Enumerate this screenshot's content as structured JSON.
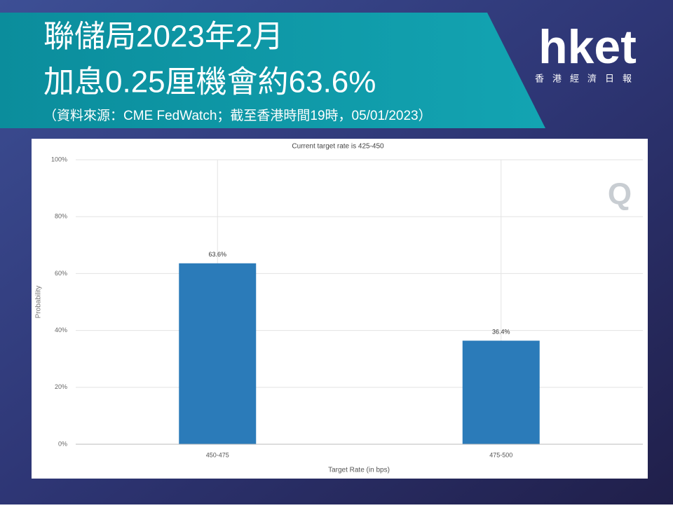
{
  "header": {
    "title_lines": [
      "聯儲局2023年2月",
      "加息0.25厘機會約63.6%"
    ],
    "source": "（資料來源：CME FedWatch；截至香港時間19時，05/01/2023）"
  },
  "logo": {
    "brand": "hket",
    "tagline": "香港經濟日報"
  },
  "chart_data": {
    "type": "bar",
    "title": "Current target rate is 425-450",
    "categories": [
      "450-475",
      "475-500"
    ],
    "values": [
      63.6,
      36.4
    ],
    "value_labels": [
      "63.6%",
      "36.4%"
    ],
    "color": "#2b7bb9",
    "x_label": "Target Rate (in bps)",
    "y_label": "Probability",
    "watermark": "Q",
    "ylim": [
      0,
      100
    ],
    "yticks": [
      {
        "value": 0,
        "label": "0%"
      },
      {
        "value": 20,
        "label": "20%"
      },
      {
        "value": 40,
        "label": "40%"
      },
      {
        "value": 60,
        "label": "60%"
      },
      {
        "value": 80,
        "label": "80%"
      },
      {
        "value": 100,
        "label": "100%"
      }
    ],
    "grid": true
  }
}
